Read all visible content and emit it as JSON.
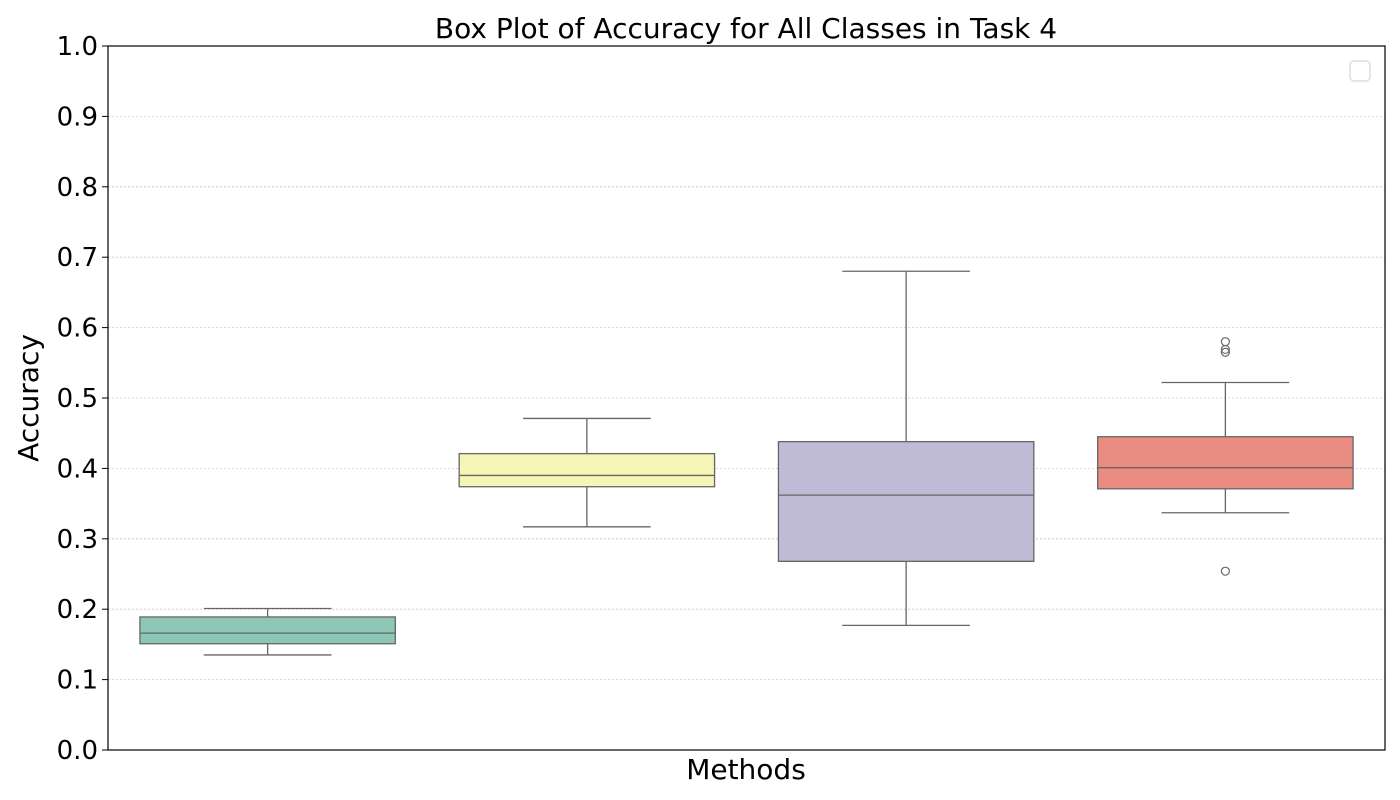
{
  "chart_data": {
    "type": "box",
    "title": "Box Plot of Accuracy for All Classes in Task 4",
    "xlabel": "Methods",
    "ylabel": "Accuracy",
    "ylim": [
      0.0,
      1.0
    ],
    "yticks": [
      "0.0",
      "0.1",
      "0.2",
      "0.3",
      "0.4",
      "0.5",
      "0.6",
      "0.7",
      "0.8",
      "0.9",
      "1.0"
    ],
    "grid": "horizontal dotted",
    "legend": {
      "placement": "top-right",
      "entries": []
    },
    "series": [
      {
        "color": "#8dc7b6",
        "whisker_low": 0.135,
        "q1": 0.151,
        "median": 0.166,
        "q3": 0.189,
        "whisker_high": 0.201,
        "outliers": []
      },
      {
        "color": "#f5f5b6",
        "whisker_low": 0.317,
        "q1": 0.374,
        "median": 0.39,
        "q3": 0.421,
        "whisker_high": 0.471,
        "outliers": []
      },
      {
        "color": "#bfbad5",
        "whisker_low": 0.177,
        "q1": 0.268,
        "median": 0.362,
        "q3": 0.438,
        "whisker_high": 0.68,
        "outliers": []
      },
      {
        "color": "#ea8c81",
        "whisker_low": 0.337,
        "q1": 0.371,
        "median": 0.401,
        "q3": 0.445,
        "whisker_high": 0.522,
        "outliers": [
          0.254,
          0.565,
          0.569,
          0.58
        ]
      }
    ]
  }
}
